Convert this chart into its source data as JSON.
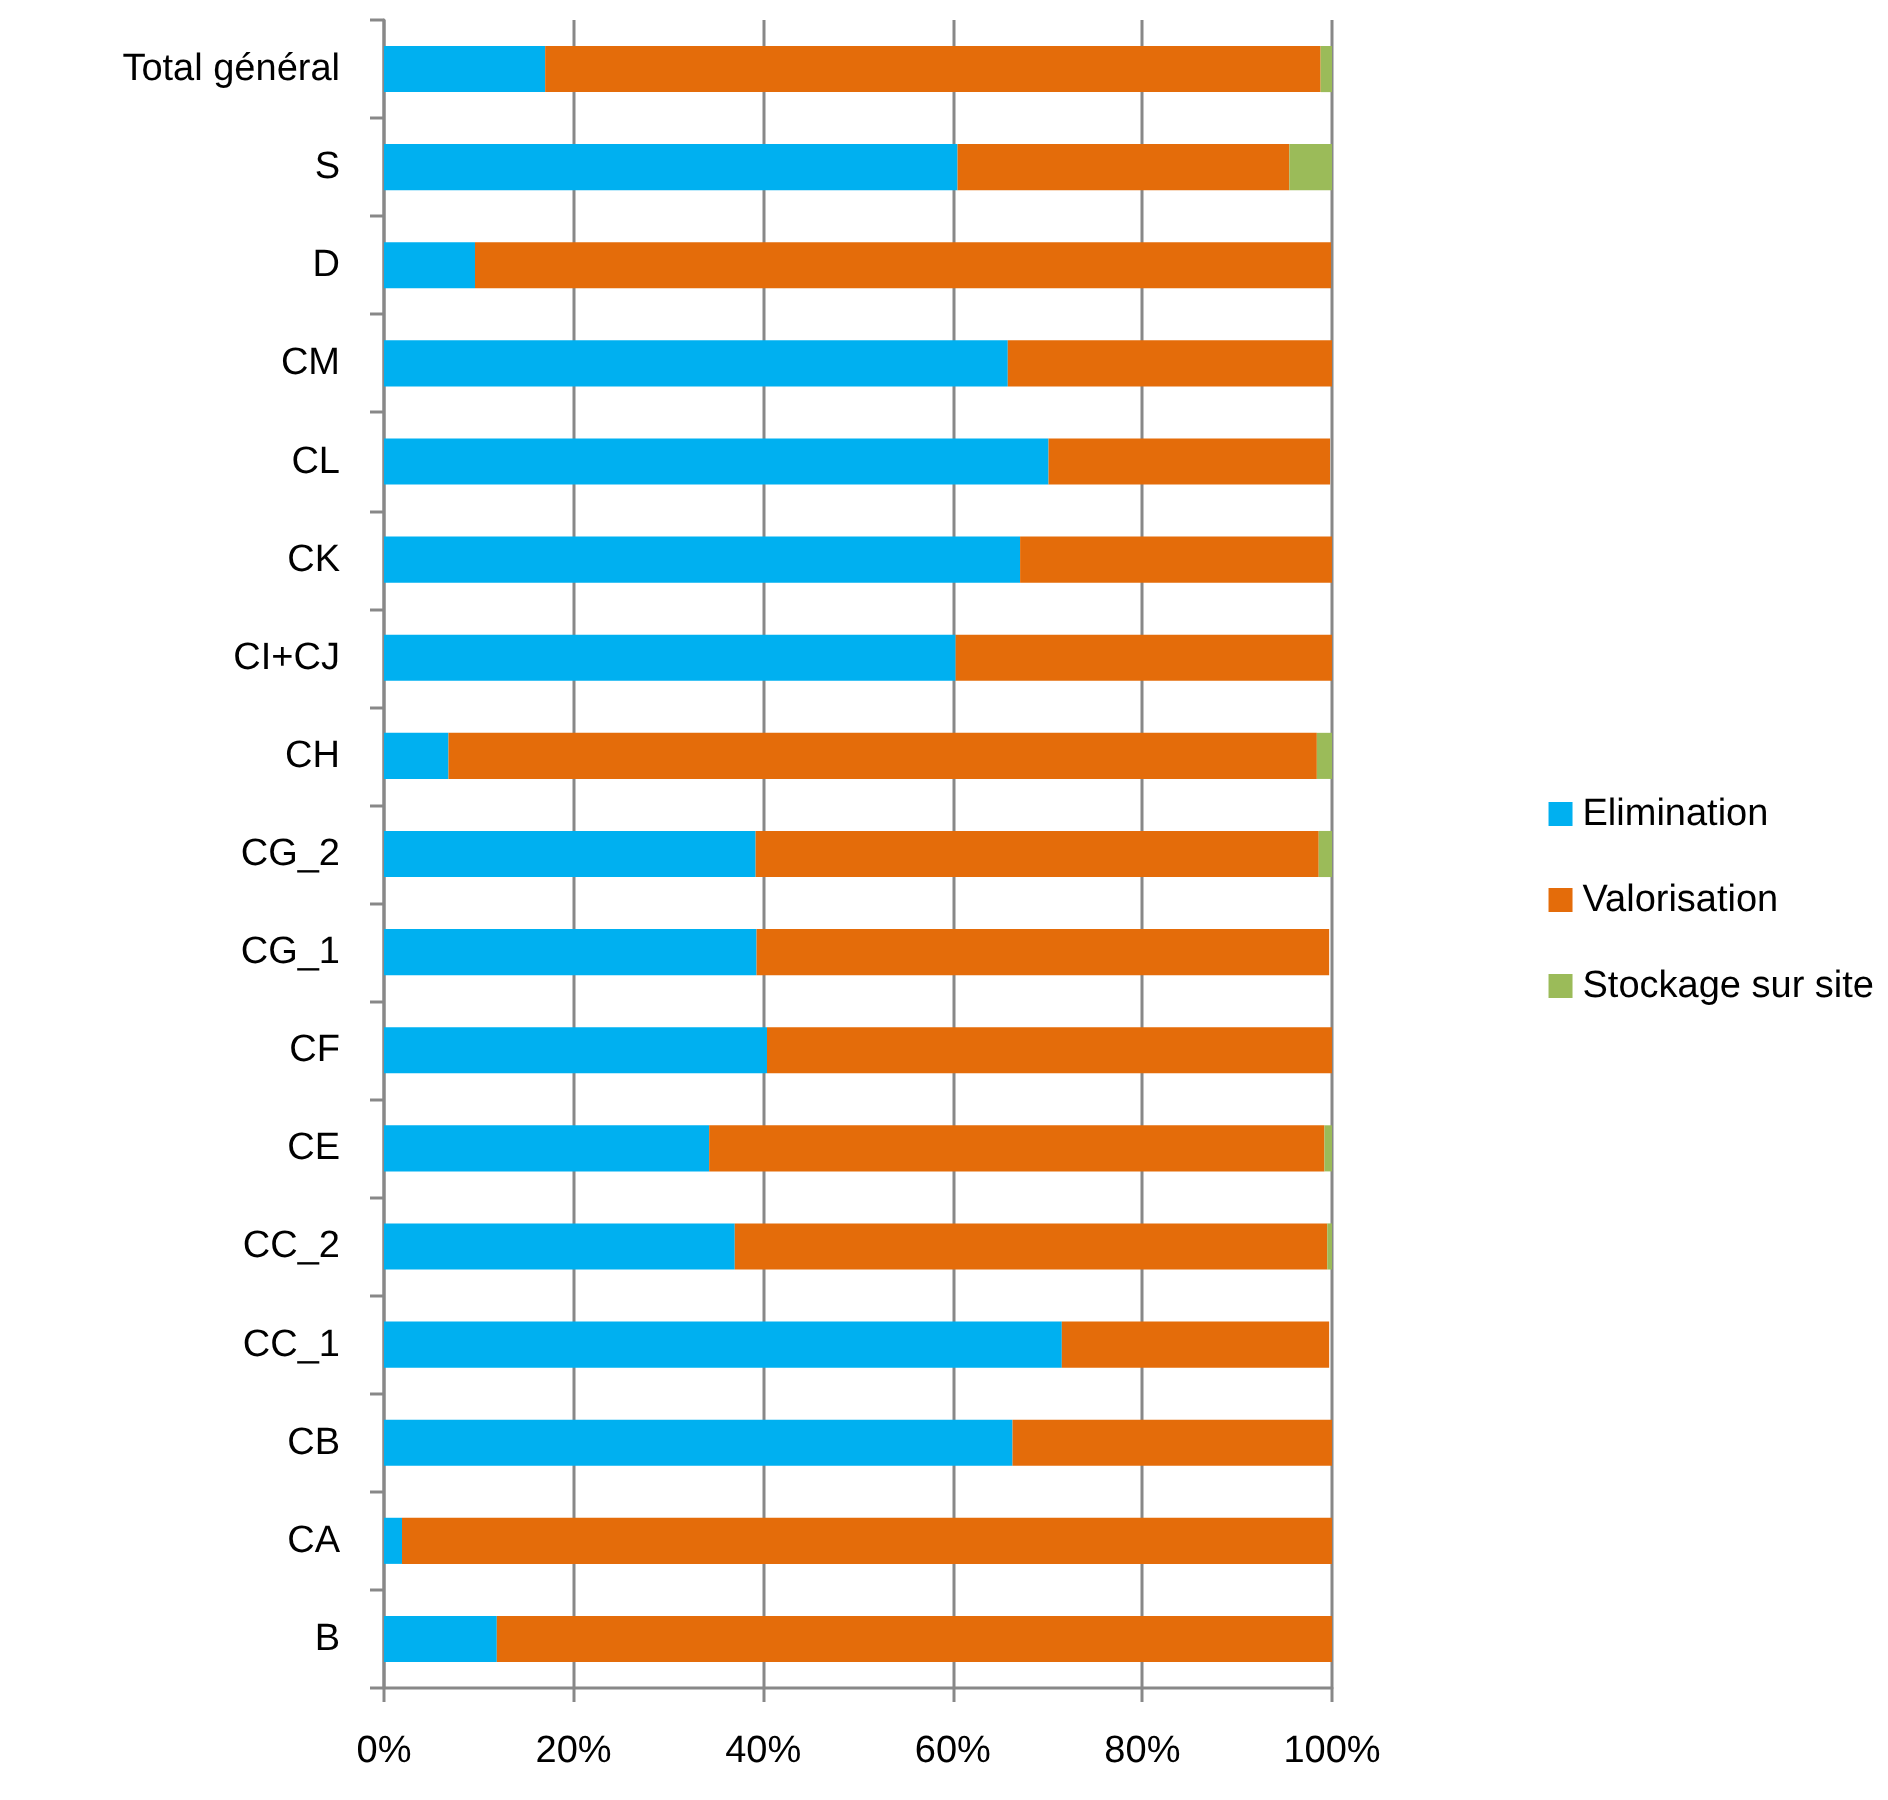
{
  "chart_data": {
    "type": "bar",
    "orientation": "horizontal",
    "stacked": true,
    "categories": [
      "Total général",
      "S",
      "D",
      "CM",
      "CL",
      "CK",
      "CI+CJ",
      "CH",
      "CG_2",
      "CG_1",
      "CF",
      "CE",
      "CC_2",
      "CC_1",
      "CB",
      "CA",
      "B"
    ],
    "series": [
      {
        "name": "Elimination",
        "color": "#00b0f0",
        "values": [
          17.0,
          60.5,
          9.6,
          65.8,
          70.1,
          67.1,
          60.3,
          6.8,
          39.2,
          39.3,
          40.4,
          34.3,
          37.0,
          71.5,
          66.3,
          1.9,
          11.9
        ]
      },
      {
        "name": "Valorisation",
        "color": "#e46c0a",
        "values": [
          81.8,
          35.0,
          90.3,
          34.2,
          29.7,
          32.9,
          39.7,
          91.6,
          59.4,
          60.4,
          59.6,
          64.9,
          62.5,
          28.2,
          33.7,
          98.1,
          88.1
        ]
      },
      {
        "name": "Stockage sur site",
        "color": "#9bbb59",
        "values": [
          1.2,
          4.5,
          null,
          0,
          null,
          0,
          0,
          1.6,
          1.4,
          null,
          0,
          0.8,
          0.5,
          null,
          0,
          0,
          0
        ]
      }
    ],
    "xlim": [
      0,
      100
    ],
    "xticks": [
      {
        "value": 0,
        "label": "0%"
      },
      {
        "value": 20,
        "label": "20%"
      },
      {
        "value": 40,
        "label": "40%"
      },
      {
        "value": 60,
        "label": "60%"
      },
      {
        "value": 80,
        "label": "80%"
      },
      {
        "value": 100,
        "label": "100%"
      }
    ],
    "grid": "x",
    "legend": "right"
  }
}
